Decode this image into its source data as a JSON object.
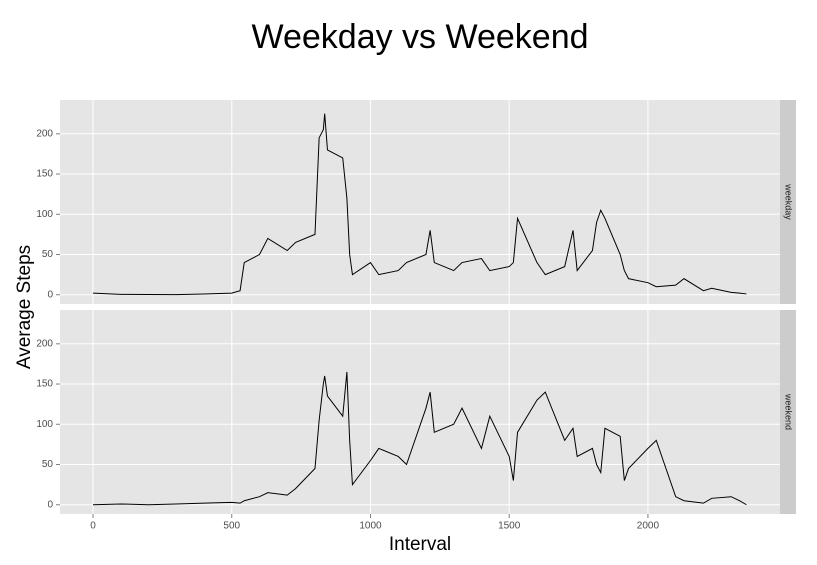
{
  "chart_data": {
    "type": "line",
    "title": "Weekday vs Weekend",
    "xlabel": "Interval",
    "ylabel": "Average Steps",
    "x": [
      0,
      100,
      200,
      300,
      400,
      500,
      530,
      545,
      600,
      630,
      700,
      730,
      800,
      815,
      830,
      835,
      845,
      900,
      915,
      925,
      935,
      1000,
      1030,
      1100,
      1130,
      1200,
      1215,
      1230,
      1300,
      1330,
      1400,
      1430,
      1500,
      1515,
      1530,
      1600,
      1630,
      1700,
      1730,
      1745,
      1800,
      1815,
      1830,
      1845,
      1900,
      1915,
      1930,
      2000,
      2030,
      2100,
      2130,
      2200,
      2230,
      2300,
      2330,
      2355
    ],
    "series": [
      {
        "name": "weekday",
        "color": "#000000",
        "values": [
          2,
          0.5,
          0.3,
          0.2,
          1,
          2,
          5,
          40,
          50,
          70,
          55,
          65,
          75,
          195,
          205,
          225,
          180,
          170,
          120,
          50,
          25,
          40,
          25,
          30,
          40,
          50,
          80,
          40,
          30,
          40,
          45,
          30,
          35,
          40,
          95,
          40,
          25,
          35,
          80,
          30,
          55,
          90,
          105,
          95,
          50,
          30,
          20,
          15,
          10,
          12,
          20,
          5,
          8,
          3,
          2,
          1
        ]
      },
      {
        "name": "weekend",
        "color": "#000000",
        "values": [
          0,
          1,
          0,
          1,
          2,
          3,
          2,
          5,
          10,
          15,
          12,
          20,
          45,
          105,
          150,
          160,
          135,
          110,
          165,
          80,
          25,
          55,
          70,
          60,
          50,
          120,
          140,
          90,
          100,
          120,
          70,
          110,
          60,
          30,
          90,
          130,
          140,
          80,
          95,
          60,
          70,
          50,
          40,
          95,
          85,
          30,
          45,
          70,
          80,
          10,
          5,
          2,
          8,
          10,
          5,
          0
        ]
      }
    ],
    "xlim": [
      -119,
      2476
    ],
    "ylim": [
      -11.5,
      242
    ],
    "xticks": [
      0,
      500,
      1000,
      1500,
      2000
    ],
    "yticks": [
      0,
      50,
      100,
      150,
      200
    ],
    "grid": true
  }
}
